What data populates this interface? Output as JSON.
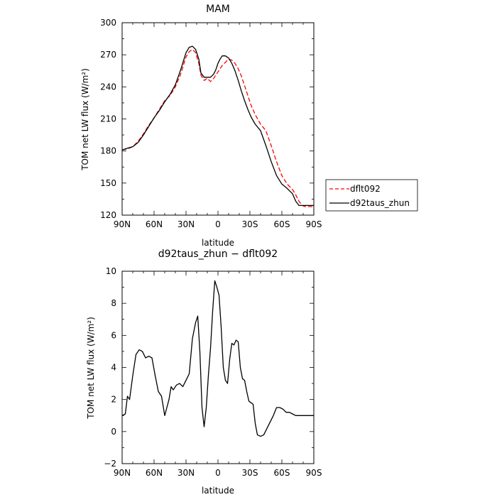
{
  "chart_data": [
    {
      "type": "line",
      "title": "MAM",
      "xlabel": "latitude",
      "ylabel": "TOM net LW flux (W/m²)",
      "x_tick_labels": [
        "90N",
        "60N",
        "30N",
        "0",
        "30S",
        "60S",
        "90S"
      ],
      "x_ticks": [
        -90,
        -60,
        -30,
        0,
        30,
        60,
        90
      ],
      "xlim": [
        -90,
        90
      ],
      "ylim": [
        120,
        300
      ],
      "y_ticks": [
        120,
        150,
        180,
        210,
        240,
        270,
        300
      ],
      "legend_position": "outside-right",
      "series": [
        {
          "name": "dflt092",
          "color": "#ff0000",
          "style": "dashed",
          "x": [
            -90,
            -85,
            -80,
            -75,
            -70,
            -65,
            -60,
            -55,
            -50,
            -45,
            -40,
            -35,
            -30,
            -27,
            -24,
            -21,
            -18,
            -16,
            -13,
            -10,
            -7,
            -4,
            -2,
            0,
            2,
            4,
            7,
            10,
            13,
            16,
            19,
            22,
            25,
            28,
            31,
            35,
            40,
            45,
            50,
            55,
            60,
            65,
            70,
            73,
            76,
            79,
            82,
            85,
            88,
            90
          ],
          "y": [
            181,
            182,
            184,
            189,
            196,
            204,
            211,
            219,
            227,
            232,
            240,
            252,
            268,
            273,
            275,
            272,
            262,
            251,
            246,
            248,
            245,
            248,
            251,
            254,
            257,
            260,
            263,
            266,
            265,
            262,
            257,
            250,
            241,
            232,
            223,
            214,
            205,
            199,
            185,
            170,
            157,
            149,
            144,
            139,
            133,
            129,
            128,
            128,
            128,
            128
          ]
        },
        {
          "name": "d92taus_zhun",
          "color": "#000000",
          "style": "solid",
          "x": [
            -90,
            -87,
            -84,
            -80,
            -75,
            -70,
            -65,
            -60,
            -55,
            -50,
            -45,
            -40,
            -35,
            -30,
            -27,
            -24,
            -21,
            -18,
            -16,
            -13,
            -10,
            -7,
            -4,
            -2,
            0,
            2,
            4,
            7,
            10,
            13,
            16,
            19,
            22,
            25,
            28,
            31,
            35,
            40,
            45,
            50,
            55,
            60,
            65,
            70,
            73,
            76,
            79,
            82,
            85,
            88,
            90
          ],
          "y": [
            181,
            182,
            183,
            184,
            188,
            195,
            203,
            211,
            218,
            226,
            233,
            242,
            256,
            272,
            277,
            278,
            275,
            266,
            253,
            249,
            249,
            249,
            252,
            256,
            262,
            266,
            269,
            269,
            267,
            262,
            255,
            246,
            236,
            227,
            219,
            212,
            205,
            199,
            185,
            170,
            157,
            149,
            145,
            140,
            133,
            129,
            129,
            129,
            129,
            129,
            129
          ]
        }
      ]
    },
    {
      "type": "line",
      "title": "d92taus_zhun − dflt092",
      "xlabel": "latitude",
      "ylabel": "TOM net LW flux (W/m²)",
      "x_tick_labels": [
        "90N",
        "60N",
        "30N",
        "0",
        "30S",
        "60S",
        "90S"
      ],
      "x_ticks": [
        -90,
        -60,
        -30,
        0,
        30,
        60,
        90
      ],
      "xlim": [
        -90,
        90
      ],
      "ylim": [
        -2,
        10
      ],
      "y_ticks": [
        -2,
        0,
        2,
        4,
        6,
        8,
        10
      ],
      "series": [
        {
          "name": "",
          "color": "#000000",
          "style": "solid",
          "x": [
            -90,
            -87,
            -85,
            -83,
            -80,
            -77,
            -74,
            -71,
            -68,
            -65,
            -62,
            -59,
            -56,
            -53,
            -50,
            -48,
            -46,
            -44,
            -42,
            -39,
            -36,
            -33,
            -30,
            -27,
            -24,
            -21,
            -19,
            -17,
            -15,
            -13,
            -11,
            -9,
            -7,
            -5,
            -3,
            -1,
            1,
            3,
            5,
            7,
            9,
            11,
            13,
            15,
            17,
            19,
            21,
            23,
            25,
            27,
            29,
            31,
            33,
            35,
            37,
            40,
            43,
            46,
            49,
            52,
            55,
            58,
            61,
            64,
            67,
            70,
            73,
            76,
            79,
            82,
            85,
            88,
            90
          ],
          "y": [
            1.0,
            1.1,
            2.2,
            2.0,
            3.5,
            4.8,
            5.1,
            5.0,
            4.6,
            4.7,
            4.6,
            3.5,
            2.5,
            2.2,
            1.0,
            1.5,
            2.0,
            2.8,
            2.6,
            2.9,
            3.0,
            2.8,
            3.2,
            3.6,
            5.8,
            6.8,
            7.2,
            5.0,
            1.5,
            0.3,
            1.5,
            3.5,
            5.2,
            7.5,
            9.4,
            9.0,
            8.5,
            6.5,
            4.0,
            3.2,
            3.0,
            4.5,
            5.5,
            5.4,
            5.7,
            5.6,
            4.0,
            3.3,
            3.2,
            2.5,
            1.9,
            1.8,
            1.7,
            0.5,
            -0.2,
            -0.3,
            -0.2,
            0.2,
            0.6,
            1.0,
            1.5,
            1.5,
            1.4,
            1.2,
            1.2,
            1.1,
            1.0,
            1.0,
            1.0,
            1.0,
            1.0,
            1.0,
            1.0
          ]
        }
      ]
    }
  ]
}
